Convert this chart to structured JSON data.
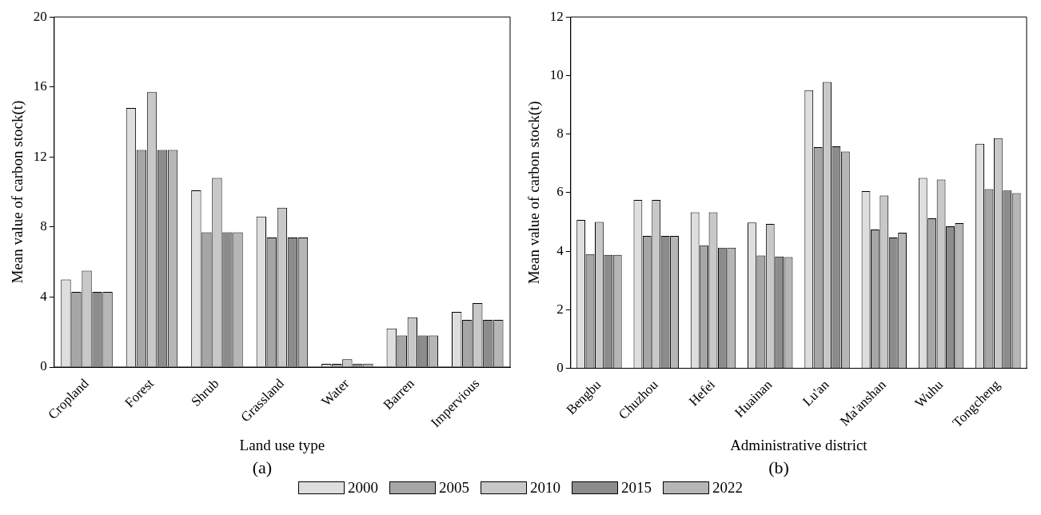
{
  "chart_data": [
    {
      "type": "bar",
      "xlabel": "Land use type",
      "ylabel": "Mean value of carbon stock(t)",
      "annotations": [
        "(a)"
      ],
      "categories": [
        "Cropland",
        "Forest",
        "Shrub",
        "Grassland",
        "Water",
        "Barren",
        "Impervious"
      ],
      "ylim": [
        0,
        20
      ],
      "yticks": [
        0,
        4,
        8,
        12,
        16,
        20
      ],
      "grid": false,
      "legend": "bottom",
      "series": [
        {
          "name": "2000",
          "color": "#dedede",
          "values": [
            5.0,
            14.8,
            10.1,
            8.6,
            0.18,
            2.2,
            3.15
          ]
        },
        {
          "name": "2005",
          "color": "#a6a6a6",
          "values": [
            4.3,
            12.4,
            7.7,
            7.4,
            0.18,
            1.8,
            2.7
          ]
        },
        {
          "name": "2010",
          "color": "#c8c8c8",
          "values": [
            5.5,
            15.7,
            10.8,
            9.1,
            0.45,
            2.85,
            3.65
          ]
        },
        {
          "name": "2015",
          "color": "#8c8c8c",
          "values": [
            4.3,
            12.4,
            7.7,
            7.4,
            0.2,
            1.8,
            2.7
          ]
        },
        {
          "name": "2022",
          "color": "#b6b6b6",
          "values": [
            4.3,
            12.4,
            7.7,
            7.4,
            0.2,
            1.8,
            2.7
          ]
        }
      ]
    },
    {
      "type": "bar",
      "xlabel": "Administrative district",
      "ylabel": "Mean value of carbon stock(t)",
      "annotations": [
        "(b)"
      ],
      "categories": [
        "Bengbu",
        "Chuzhou",
        "Hefei",
        "Huainan",
        "Lu'an",
        "Ma'anshan",
        "Wuhu",
        "Tongcheng"
      ],
      "ylim": [
        0,
        12
      ],
      "yticks": [
        0,
        2,
        4,
        6,
        8,
        10,
        12
      ],
      "grid": false,
      "legend": "bottom",
      "series": [
        {
          "name": "2000",
          "color": "#dedede",
          "values": [
            5.07,
            5.75,
            5.33,
            4.98,
            9.5,
            6.05,
            6.5,
            7.67
          ]
        },
        {
          "name": "2005",
          "color": "#a6a6a6",
          "values": [
            3.9,
            4.52,
            4.2,
            3.85,
            7.55,
            4.74,
            5.12,
            6.12
          ]
        },
        {
          "name": "2010",
          "color": "#c8c8c8",
          "values": [
            5.0,
            5.75,
            5.33,
            4.93,
            9.78,
            5.9,
            6.45,
            7.86
          ]
        },
        {
          "name": "2015",
          "color": "#8c8c8c",
          "values": [
            3.87,
            4.52,
            4.12,
            3.82,
            7.58,
            4.47,
            4.85,
            6.07
          ]
        },
        {
          "name": "2022",
          "color": "#b6b6b6",
          "values": [
            3.87,
            4.52,
            4.12,
            3.8,
            7.4,
            4.63,
            4.96,
            5.98
          ]
        }
      ]
    }
  ]
}
